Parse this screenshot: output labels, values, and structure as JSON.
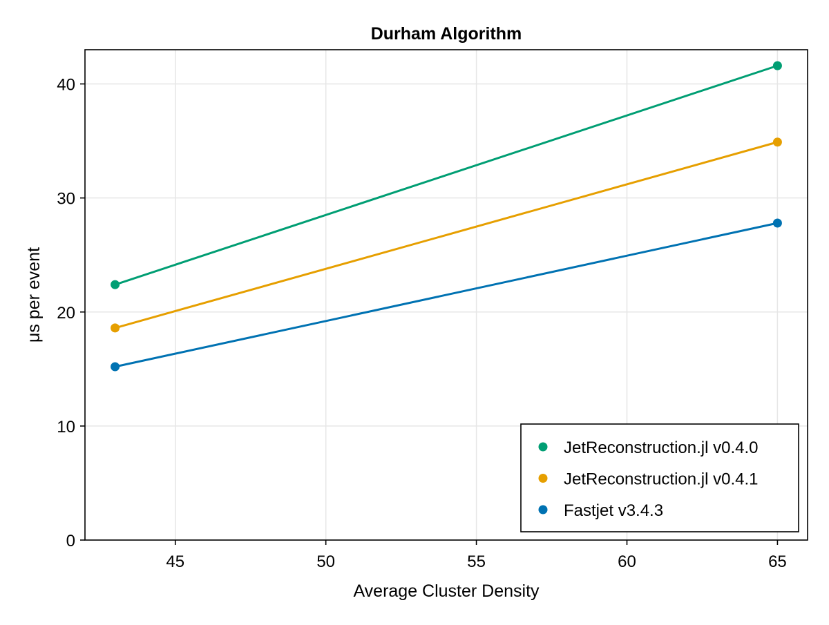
{
  "chart_data": {
    "type": "line",
    "title": "Durham Algorithm",
    "xlabel": "Average Cluster Density",
    "ylabel": "μs per event",
    "x": [
      43,
      65
    ],
    "xlim": [
      42,
      66
    ],
    "ylim": [
      0,
      43
    ],
    "xticks": [
      45,
      50,
      55,
      60,
      65
    ],
    "yticks": [
      0,
      10,
      20,
      30,
      40
    ],
    "grid": true,
    "legend_position": "bottom-right",
    "markers": true,
    "series": [
      {
        "name": "JetReconstruction.jl v0.4.0",
        "color": "#009e73",
        "values": [
          22.4,
          41.6
        ]
      },
      {
        "name": "JetReconstruction.jl v0.4.1",
        "color": "#e69f00",
        "values": [
          18.6,
          34.9
        ]
      },
      {
        "name": "Fastjet v3.4.3",
        "color": "#0072b2",
        "values": [
          15.2,
          27.8
        ]
      }
    ]
  }
}
